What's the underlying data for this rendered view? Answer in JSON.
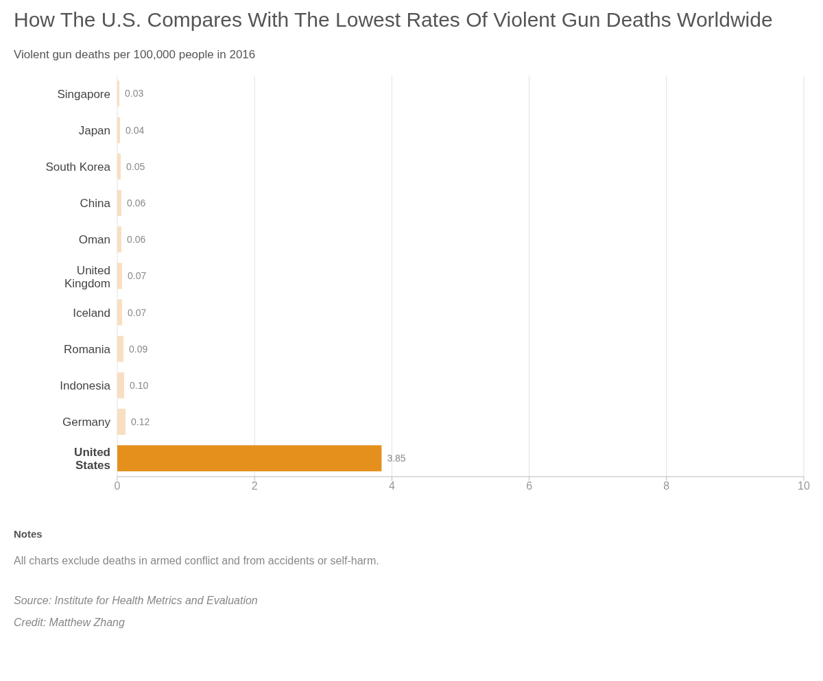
{
  "chart_data": {
    "type": "bar",
    "orientation": "horizontal",
    "title": "How The U.S. Compares With The Lowest Rates Of Violent Gun Deaths Worldwide",
    "subtitle": "Violent gun deaths per 100,000 people in 2016",
    "categories": [
      "Singapore",
      "Japan",
      "South Korea",
      "China",
      "Oman",
      "United Kingdom",
      "Iceland",
      "Romania",
      "Indonesia",
      "Germany",
      "United States"
    ],
    "values": [
      0.03,
      0.04,
      0.05,
      0.06,
      0.06,
      0.07,
      0.07,
      0.09,
      0.1,
      0.12,
      3.85
    ],
    "value_labels": [
      "0.03",
      "0.04",
      "0.05",
      "0.06",
      "0.06",
      "0.07",
      "0.07",
      "0.09",
      "0.10",
      "0.12",
      "3.85"
    ],
    "colors": [
      "#f8dfc1",
      "#f8dfc1",
      "#f8dfc1",
      "#f8dfc1",
      "#f8dfc1",
      "#f8dfc1",
      "#f8dfc1",
      "#f8dfc1",
      "#f8dfc1",
      "#f8dfc1",
      "#e5901c"
    ],
    "xlim": [
      0,
      10
    ],
    "xticks": [
      0,
      2,
      4,
      6,
      8,
      10
    ],
    "grid": "x",
    "legend": false,
    "annotations": [
      "Notes",
      "All charts exclude deaths in armed conflict and from accidents or self-harm.",
      "Source: Institute for Health Metrics and Evaluation",
      "Credit: Matthew Zhang"
    ]
  }
}
